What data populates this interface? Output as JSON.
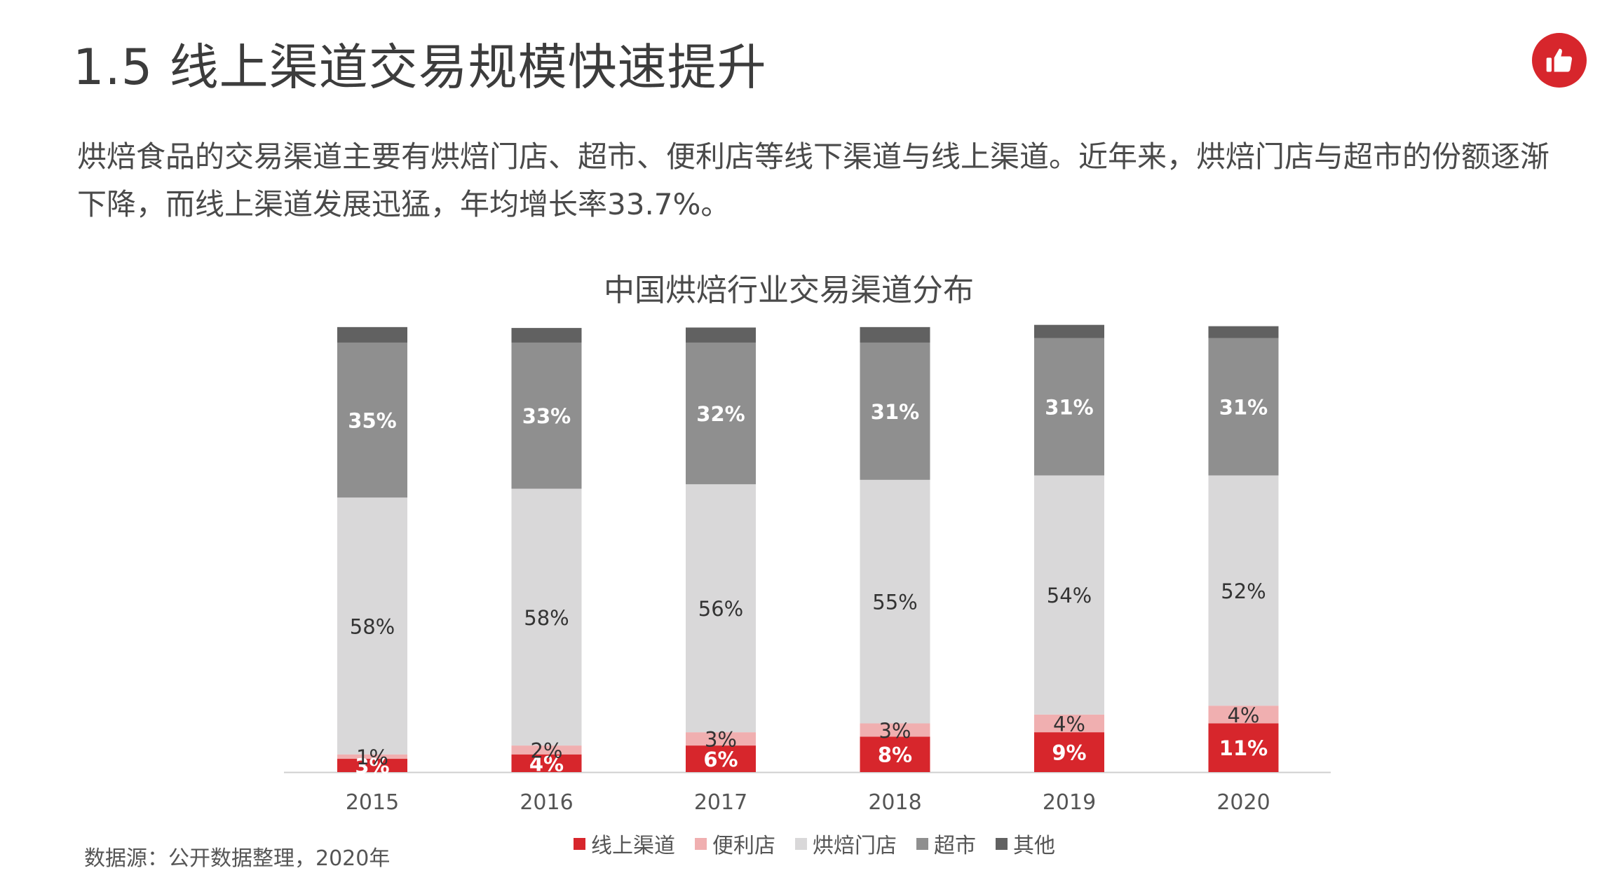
{
  "page": {
    "title": "1.5 线上渠道交易规模快速提升",
    "description": "烘焙食品的交易渠道主要有烘焙门店、超市、便利店等线下渠道与线上渠道。近年来，烘焙门店与超市的份额逐渐下降，而线上渠道发展迅猛，年均增长率33.7%。",
    "source": "数据源：公开数据整理，2020年",
    "badge_icon": "thumbs-up-icon"
  },
  "chart_data": {
    "type": "bar",
    "stacked": true,
    "title": "中国烘焙行业交易渠道分布",
    "xlabel": "",
    "ylabel": "",
    "ylim": [
      0,
      100
    ],
    "grid": false,
    "legend_position": "bottom",
    "categories": [
      "2015",
      "2016",
      "2017",
      "2018",
      "2019",
      "2020"
    ],
    "series": [
      {
        "name": "线上渠道",
        "color": "#d7262c",
        "label_color": "#ffffff",
        "label_bold": true,
        "values": [
          3,
          4,
          6,
          8,
          9,
          11
        ],
        "labels": [
          "3%",
          "4%",
          "6%",
          "8%",
          "9%",
          "11%"
        ]
      },
      {
        "name": "便利店",
        "color": "#f0afb0",
        "label_color": "#333333",
        "label_bold": false,
        "values": [
          1,
          2,
          3,
          3,
          4,
          4
        ],
        "labels": [
          "1%",
          "2%",
          "3%",
          "3%",
          "4%",
          "4%"
        ]
      },
      {
        "name": "烘焙门店",
        "color": "#d9d8d9",
        "label_color": "#333333",
        "label_bold": false,
        "values": [
          58,
          58,
          56,
          55,
          54,
          52
        ],
        "labels": [
          "58%",
          "58%",
          "56%",
          "55%",
          "54%",
          "52%"
        ]
      },
      {
        "name": "超市",
        "color": "#8f8f8f",
        "label_color": "#ffffff",
        "label_bold": true,
        "values": [
          35,
          33,
          32,
          31,
          31,
          31
        ],
        "labels": [
          "35%",
          "33%",
          "32%",
          "31%",
          "31%",
          "31%"
        ]
      },
      {
        "name": "其他",
        "color": "#616161",
        "label_color": "#ffffff",
        "label_bold": false,
        "values": [
          3.5,
          3.3,
          3.4,
          3.5,
          3.0,
          2.7
        ],
        "labels": [
          "",
          "",
          "",
          "",
          "",
          ""
        ]
      }
    ]
  }
}
